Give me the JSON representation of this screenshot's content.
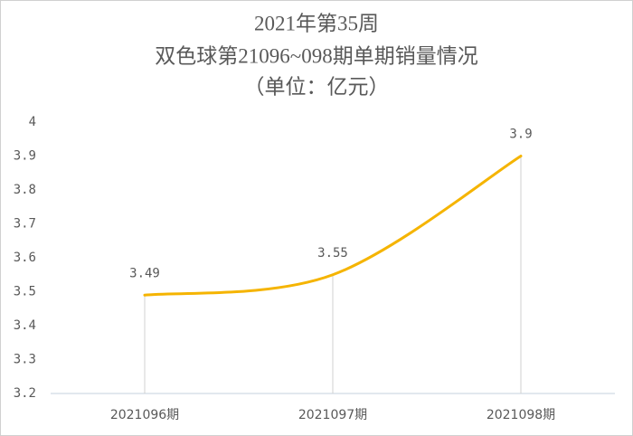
{
  "chart_data": {
    "type": "line",
    "title": "2021年第35周",
    "subtitle": "双色球第21096~098期单期销量情况",
    "unit": "（单位：亿元）",
    "categories": [
      "2021096期",
      "2021097期",
      "2021098期"
    ],
    "values": [
      3.49,
      3.55,
      3.9
    ],
    "color": "#f5b400",
    "smooth": true,
    "drop_lines": true,
    "ylim": [
      3.2,
      4
    ],
    "yticks": [
      3.2,
      3.3,
      3.4,
      3.5,
      3.6,
      3.7,
      3.8,
      3.9,
      4
    ],
    "grid": false
  }
}
